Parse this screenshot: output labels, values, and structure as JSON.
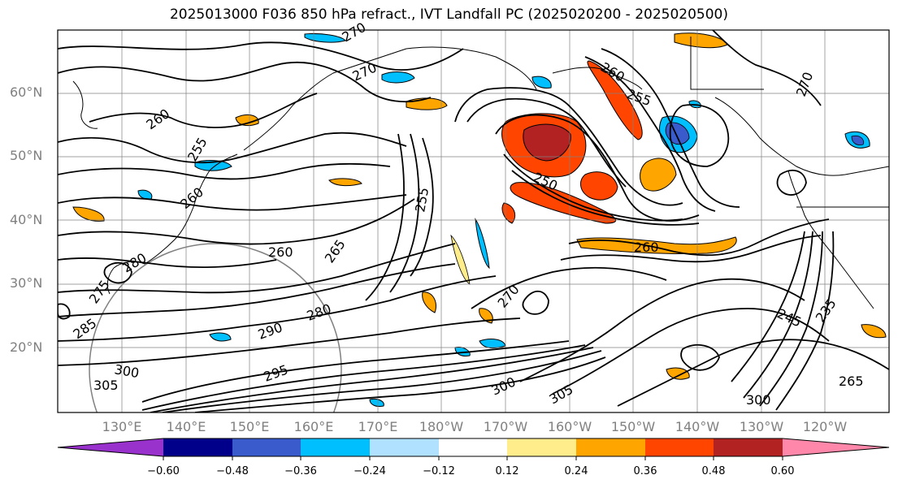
{
  "title": "2025013000 F036 850 hPa refract., IVT Landfall PC (2025020200 - 2025020500)",
  "latitude_labels": [
    "60°N",
    "50°N",
    "40°N",
    "30°N",
    "20°N"
  ],
  "longitude_labels": [
    "130°E",
    "140°E",
    "150°E",
    "160°E",
    "170°E",
    "180°W",
    "170°W",
    "160°W",
    "150°W",
    "140°W",
    "130°W",
    "120°W"
  ],
  "colorbar": {
    "colors": [
      "#9932CC",
      "#00008B",
      "#3A5BCB",
      "#00BFFF",
      "#B0E2FF",
      "#FFFFFF",
      "#FFEC8B",
      "#FFA500",
      "#FF4500",
      "#B22222",
      "#FF88AA"
    ],
    "tick_labels": [
      "−0.60",
      "−0.48",
      "−0.36",
      "−0.24",
      "−0.12",
      "0.12",
      "0.24",
      "0.36",
      "0.48",
      "0.60"
    ]
  },
  "contour_labels": [
    "270",
    "260",
    "255",
    "260",
    "260",
    "270",
    "250",
    "255",
    "255",
    "260",
    "260",
    "265",
    "270",
    "270",
    "280",
    "285",
    "295",
    "305",
    "300",
    "305",
    "300",
    "245",
    "235",
    "265",
    "300",
    "275",
    "280",
    "290"
  ]
}
